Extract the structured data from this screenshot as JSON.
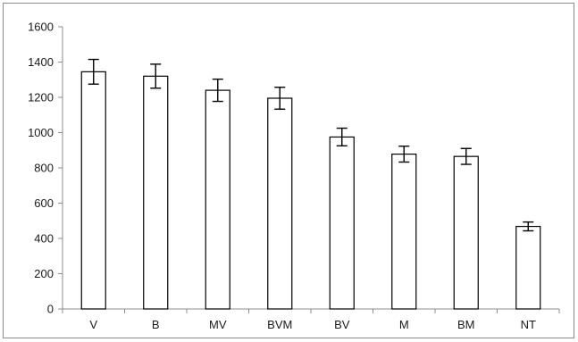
{
  "chart_data": {
    "type": "bar",
    "title": "",
    "xlabel": "",
    "ylabel": "",
    "categories": [
      "V",
      "B",
      "MV",
      "BVM",
      "BV",
      "M",
      "BM",
      "NT"
    ],
    "values": [
      1345,
      1320,
      1240,
      1195,
      975,
      878,
      865,
      468
    ],
    "error": [
      70,
      68,
      63,
      62,
      50,
      45,
      45,
      25
    ],
    "ylim": [
      0,
      1600
    ],
    "yticks": [
      0,
      200,
      400,
      600,
      800,
      1000,
      1200,
      1400,
      1600
    ],
    "grid": false,
    "legend": "none",
    "colors": {
      "bar_fill": "#ffffff",
      "bar_stroke": "#000000",
      "axis": "#8c8c8c",
      "error_bar": "#000000",
      "frame": "#8c8c8c"
    }
  }
}
